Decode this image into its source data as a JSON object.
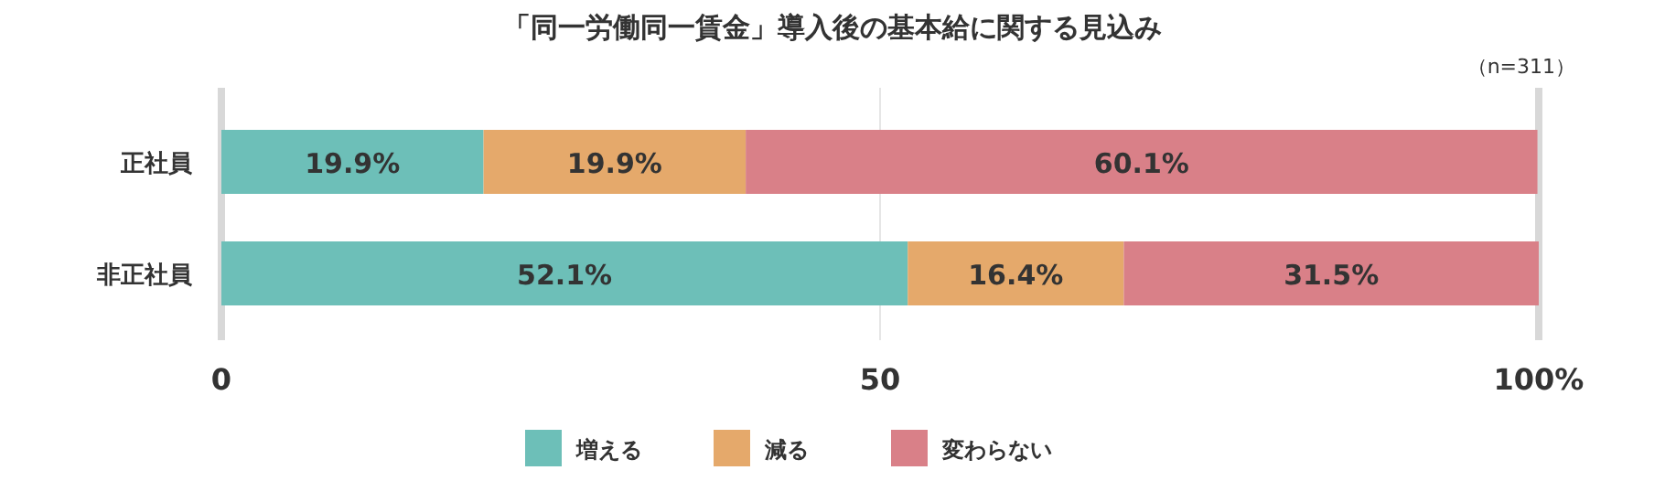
{
  "chart_data": {
    "type": "bar",
    "orientation": "horizontal",
    "stacked": true,
    "title": "「同一労働同一賃金」導入後の基本給に関する見込み",
    "annotations": [
      "（n=311）"
    ],
    "categories": [
      "正社員",
      "非正社員"
    ],
    "series": [
      {
        "name": "増える",
        "color": "#6dbfb8",
        "values": [
          19.9,
          52.1
        ],
        "value_labels": [
          "19.9%",
          "52.1%"
        ]
      },
      {
        "name": "減る",
        "color": "#e5a96b",
        "values": [
          19.9,
          16.4
        ],
        "value_labels": [
          "19.9%",
          "16.4%"
        ]
      },
      {
        "name": "変わらない",
        "color": "#d98088",
        "values": [
          60.1,
          31.5
        ],
        "value_labels": [
          "60.1%",
          "31.5%"
        ]
      }
    ],
    "xlim": [
      0,
      100
    ],
    "xticks": [
      0,
      50,
      {
        "value": 100,
        "label": "100%"
      }
    ],
    "grid": "x",
    "legend": "bottom"
  }
}
